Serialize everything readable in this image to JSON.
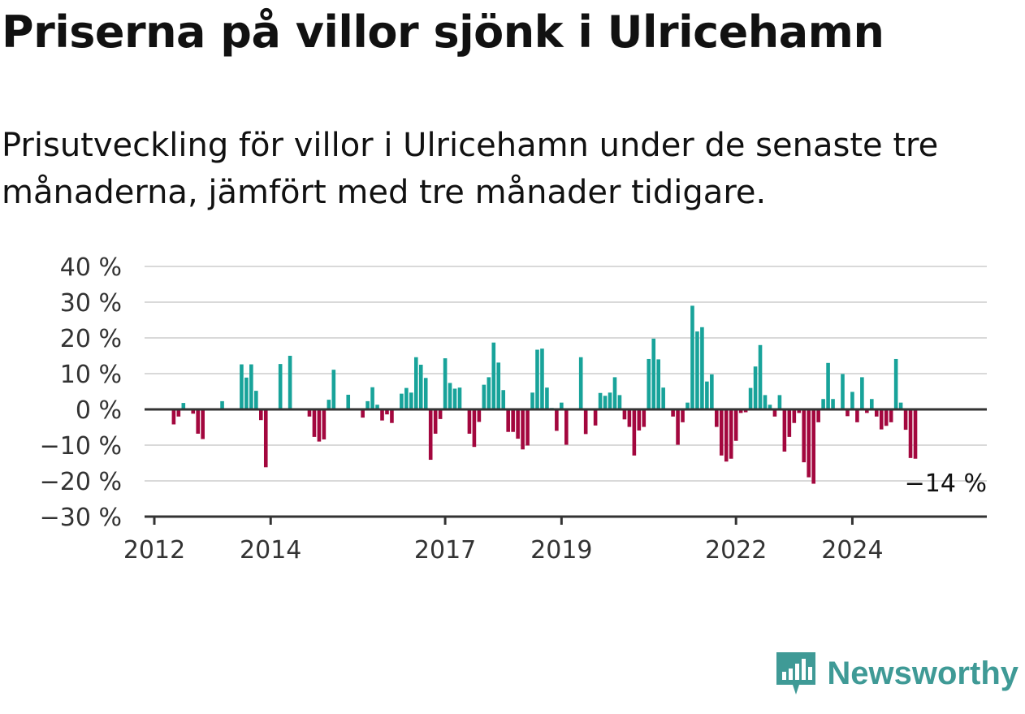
{
  "header": {
    "title": "Priserna på villor sjönk i Ulricehamn",
    "subtitle": "Prisutveckling för villor i Ulricehamn under de senaste tre månaderna, jämfört med tre månader tidigare."
  },
  "brand": {
    "name": "Newsworthy",
    "icon": "newsworthy-logo-icon",
    "color": "#3f9a96"
  },
  "colors": {
    "positive": "#18a39a",
    "negative": "#a3073e",
    "grid": "#d9d9d9",
    "axis": "#333333"
  },
  "chart_data": {
    "type": "bar",
    "title": "",
    "xlabel": "",
    "ylabel": "",
    "ylim": [
      -30,
      40
    ],
    "yticks": [
      40,
      30,
      20,
      10,
      0,
      -10,
      -20,
      -30
    ],
    "ytick_labels": [
      "40 %",
      "30 %",
      "20 %",
      "10 %",
      "0 %",
      "−10 %",
      "−20 %",
      "−30 %"
    ],
    "xlim": [
      "2012-01",
      "2025-12"
    ],
    "xticks": [
      "2012-01",
      "2014-01",
      "2017-01",
      "2019-01",
      "2022-01",
      "2024-01"
    ],
    "xtick_labels": [
      "2012",
      "2014",
      "2017",
      "2019",
      "2022",
      "2024"
    ],
    "grid": true,
    "last_value_label": "−14 %",
    "series": [
      {
        "values": [
          {
            "x": "2012-01",
            "y": 0
          },
          {
            "x": "2012-02",
            "y": 0
          },
          {
            "x": "2012-03",
            "y": 0
          },
          {
            "x": "2012-04",
            "y": 0
          },
          {
            "x": "2012-05",
            "y": -4.2
          },
          {
            "x": "2012-06",
            "y": -2
          },
          {
            "x": "2012-07",
            "y": 1.8
          },
          {
            "x": "2012-08",
            "y": 0
          },
          {
            "x": "2012-09",
            "y": -1.2
          },
          {
            "x": "2012-10",
            "y": -6.8
          },
          {
            "x": "2012-11",
            "y": -8.3
          },
          {
            "x": "2012-12",
            "y": 0
          },
          {
            "x": "2013-01",
            "y": 0
          },
          {
            "x": "2013-02",
            "y": 0
          },
          {
            "x": "2013-03",
            "y": 2.3
          },
          {
            "x": "2013-04",
            "y": 0
          },
          {
            "x": "2013-05",
            "y": 0
          },
          {
            "x": "2013-06",
            "y": 0
          },
          {
            "x": "2013-07",
            "y": 12.6
          },
          {
            "x": "2013-08",
            "y": 8.9
          },
          {
            "x": "2013-09",
            "y": 12.6
          },
          {
            "x": "2013-10",
            "y": 5.2
          },
          {
            "x": "2013-11",
            "y": -3
          },
          {
            "x": "2013-12",
            "y": -16.2
          },
          {
            "x": "2014-01",
            "y": 0
          },
          {
            "x": "2014-02",
            "y": 0
          },
          {
            "x": "2014-03",
            "y": 12.7
          },
          {
            "x": "2014-04",
            "y": 0
          },
          {
            "x": "2014-05",
            "y": 15
          },
          {
            "x": "2014-06",
            "y": 0
          },
          {
            "x": "2014-07",
            "y": 0
          },
          {
            "x": "2014-08",
            "y": 0
          },
          {
            "x": "2014-09",
            "y": -2
          },
          {
            "x": "2014-10",
            "y": -7.7
          },
          {
            "x": "2014-11",
            "y": -9
          },
          {
            "x": "2014-12",
            "y": -8.4
          },
          {
            "x": "2015-01",
            "y": 2.7
          },
          {
            "x": "2015-02",
            "y": 11.1
          },
          {
            "x": "2015-03",
            "y": 0
          },
          {
            "x": "2015-04",
            "y": 0
          },
          {
            "x": "2015-05",
            "y": 4.1
          },
          {
            "x": "2015-06",
            "y": 0
          },
          {
            "x": "2015-07",
            "y": 0
          },
          {
            "x": "2015-08",
            "y": -2.3
          },
          {
            "x": "2015-09",
            "y": 2.3
          },
          {
            "x": "2015-10",
            "y": 6.2
          },
          {
            "x": "2015-11",
            "y": 1.3
          },
          {
            "x": "2015-12",
            "y": -3.1
          },
          {
            "x": "2016-01",
            "y": -1.4
          },
          {
            "x": "2016-02",
            "y": -3.8
          },
          {
            "x": "2016-03",
            "y": 0
          },
          {
            "x": "2016-04",
            "y": 4.4
          },
          {
            "x": "2016-05",
            "y": 6
          },
          {
            "x": "2016-06",
            "y": 4.7
          },
          {
            "x": "2016-07",
            "y": 14.6
          },
          {
            "x": "2016-08",
            "y": 12.5
          },
          {
            "x": "2016-09",
            "y": 8.8
          },
          {
            "x": "2016-10",
            "y": -14.1
          },
          {
            "x": "2016-11",
            "y": -6.8
          },
          {
            "x": "2016-12",
            "y": -2.7
          },
          {
            "x": "2017-01",
            "y": 14.3
          },
          {
            "x": "2017-02",
            "y": 7.4
          },
          {
            "x": "2017-03",
            "y": 5.8
          },
          {
            "x": "2017-04",
            "y": 6.1
          },
          {
            "x": "2017-05",
            "y": 0
          },
          {
            "x": "2017-06",
            "y": -6.8
          },
          {
            "x": "2017-07",
            "y": -10.5
          },
          {
            "x": "2017-08",
            "y": -3.5
          },
          {
            "x": "2017-09",
            "y": 6.9
          },
          {
            "x": "2017-10",
            "y": 9
          },
          {
            "x": "2017-11",
            "y": 18.7
          },
          {
            "x": "2017-12",
            "y": 13.1
          },
          {
            "x": "2018-01",
            "y": 5.4
          },
          {
            "x": "2018-02",
            "y": -6.3
          },
          {
            "x": "2018-03",
            "y": -6.3
          },
          {
            "x": "2018-04",
            "y": -8.2
          },
          {
            "x": "2018-05",
            "y": -11.2
          },
          {
            "x": "2018-06",
            "y": -10.1
          },
          {
            "x": "2018-07",
            "y": 4.7
          },
          {
            "x": "2018-08",
            "y": 16.7
          },
          {
            "x": "2018-09",
            "y": 17
          },
          {
            "x": "2018-10",
            "y": 6.1
          },
          {
            "x": "2018-11",
            "y": 0.4
          },
          {
            "x": "2018-12",
            "y": -6
          },
          {
            "x": "2019-01",
            "y": 1.9
          },
          {
            "x": "2019-02",
            "y": -9.9
          },
          {
            "x": "2019-03",
            "y": 0
          },
          {
            "x": "2019-04",
            "y": 0
          },
          {
            "x": "2019-05",
            "y": 14.6
          },
          {
            "x": "2019-06",
            "y": -6.9
          },
          {
            "x": "2019-07",
            "y": 0
          },
          {
            "x": "2019-08",
            "y": -4.5
          },
          {
            "x": "2019-09",
            "y": 4.6
          },
          {
            "x": "2019-10",
            "y": 3.8
          },
          {
            "x": "2019-11",
            "y": 4.7
          },
          {
            "x": "2019-12",
            "y": 9
          },
          {
            "x": "2020-01",
            "y": 4
          },
          {
            "x": "2020-02",
            "y": -2.8
          },
          {
            "x": "2020-03",
            "y": -4.9
          },
          {
            "x": "2020-04",
            "y": -12.9
          },
          {
            "x": "2020-05",
            "y": -5.9
          },
          {
            "x": "2020-06",
            "y": -4.9
          },
          {
            "x": "2020-07",
            "y": 14.1
          },
          {
            "x": "2020-08",
            "y": 19.8
          },
          {
            "x": "2020-09",
            "y": 14
          },
          {
            "x": "2020-10",
            "y": 6.1
          },
          {
            "x": "2020-11",
            "y": 0
          },
          {
            "x": "2020-12",
            "y": -2
          },
          {
            "x": "2021-01",
            "y": -9.9
          },
          {
            "x": "2021-02",
            "y": -3.6
          },
          {
            "x": "2021-03",
            "y": 1.9
          },
          {
            "x": "2021-04",
            "y": 29
          },
          {
            "x": "2021-05",
            "y": 21.8
          },
          {
            "x": "2021-06",
            "y": 23
          },
          {
            "x": "2021-07",
            "y": 7.8
          },
          {
            "x": "2021-08",
            "y": 9.8
          },
          {
            "x": "2021-09",
            "y": -4.9
          },
          {
            "x": "2021-10",
            "y": -12.9
          },
          {
            "x": "2021-11",
            "y": -14.6
          },
          {
            "x": "2021-12",
            "y": -13.8
          },
          {
            "x": "2022-01",
            "y": -8.8
          },
          {
            "x": "2022-02",
            "y": -1
          },
          {
            "x": "2022-03",
            "y": -0.8
          },
          {
            "x": "2022-04",
            "y": 6
          },
          {
            "x": "2022-05",
            "y": 12
          },
          {
            "x": "2022-06",
            "y": 18
          },
          {
            "x": "2022-07",
            "y": 4
          },
          {
            "x": "2022-08",
            "y": 1.3
          },
          {
            "x": "2022-09",
            "y": -2
          },
          {
            "x": "2022-10",
            "y": 4
          },
          {
            "x": "2022-11",
            "y": -11.8
          },
          {
            "x": "2022-12",
            "y": -7.7
          },
          {
            "x": "2023-01",
            "y": -3.8
          },
          {
            "x": "2023-02",
            "y": -1
          },
          {
            "x": "2023-03",
            "y": -14.8
          },
          {
            "x": "2023-04",
            "y": -19
          },
          {
            "x": "2023-05",
            "y": -20.8
          },
          {
            "x": "2023-06",
            "y": -3.6
          },
          {
            "x": "2023-07",
            "y": 2.9
          },
          {
            "x": "2023-08",
            "y": 13
          },
          {
            "x": "2023-09",
            "y": 2.9
          },
          {
            "x": "2023-10",
            "y": 0
          },
          {
            "x": "2023-11",
            "y": 9.9
          },
          {
            "x": "2023-12",
            "y": -1.9
          },
          {
            "x": "2024-01",
            "y": 4.9
          },
          {
            "x": "2024-02",
            "y": -3.6
          },
          {
            "x": "2024-03",
            "y": 9
          },
          {
            "x": "2024-04",
            "y": -1
          },
          {
            "x": "2024-05",
            "y": 2.9
          },
          {
            "x": "2024-06",
            "y": -2
          },
          {
            "x": "2024-07",
            "y": -5.6
          },
          {
            "x": "2024-08",
            "y": -4.6
          },
          {
            "x": "2024-09",
            "y": -3.6
          },
          {
            "x": "2024-10",
            "y": 14.1
          },
          {
            "x": "2024-11",
            "y": 1.9
          },
          {
            "x": "2024-12",
            "y": -5.7
          },
          {
            "x": "2025-01",
            "y": -13.6
          },
          {
            "x": "2025-02",
            "y": -13.8
          }
        ]
      }
    ]
  }
}
